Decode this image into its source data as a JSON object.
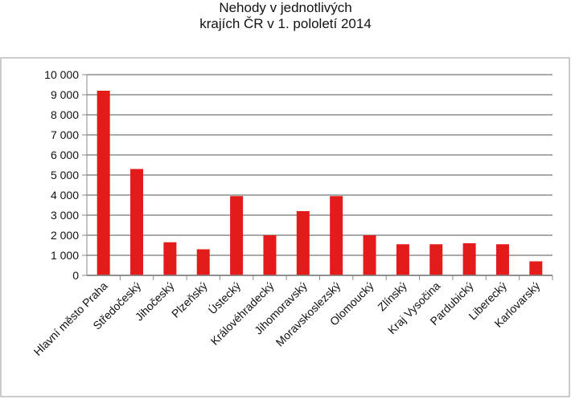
{
  "chart_data": {
    "type": "bar",
    "title_lines": [
      "Nehody v jednotlivých",
      "krajích ČR v 1. pololetí 2014"
    ],
    "categories": [
      "Hlavní město Praha",
      "Středočeský",
      "Jihočeský",
      "Plzeňský",
      "Ústecký",
      "Královéhradecký",
      "Jihomoravský",
      "Moravskoslezský",
      "Olomoucký",
      "Zlínský",
      "Kraj Vysočina",
      "Pardubický",
      "Liberecký",
      "Karlovarský"
    ],
    "values": [
      9200,
      5300,
      1650,
      1300,
      3950,
      2000,
      3200,
      3950,
      2000,
      1550,
      1550,
      1600,
      1550,
      700
    ],
    "yticks": [
      "0",
      "1 000",
      "2 000",
      "3 000",
      "4 000",
      "5 000",
      "6 000",
      "7 000",
      "8 000",
      "9 000",
      "10 000"
    ],
    "ylim": [
      0,
      10000
    ],
    "grid": true,
    "legend": "none",
    "bar_color": "#e31b1b",
    "grid_color": "#a9a9a9"
  }
}
